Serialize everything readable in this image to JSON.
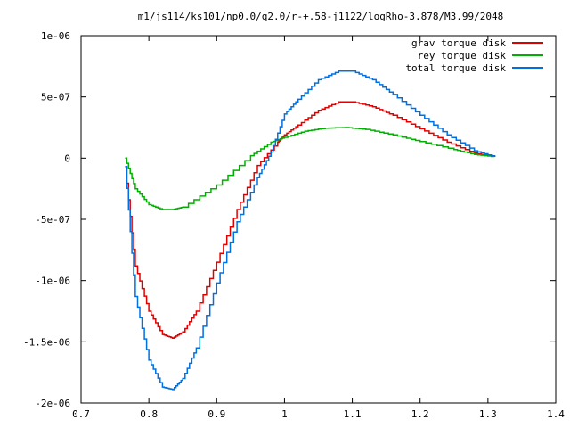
{
  "chart_data": {
    "type": "line",
    "title": "m1/js114/ks101/np0.0/q2.0/r-+.58-j1122/logRho-3.878/M3.99/2048",
    "xlabel": "",
    "ylabel": "",
    "xlim": [
      0.7,
      1.4
    ],
    "ylim": [
      -2e-06,
      1e-06
    ],
    "x_ticks": [
      0.7,
      0.8,
      0.9,
      1.0,
      1.1,
      1.2,
      1.3,
      1.4
    ],
    "x_tick_labels": [
      "0.7",
      "0.8",
      "0.9",
      "1",
      "1.1",
      "1.2",
      "1.3",
      "1.4"
    ],
    "y_ticks": [
      1e-06,
      5e-07,
      0,
      -5e-07,
      -1e-06,
      -1.5e-06,
      -2e-06
    ],
    "y_tick_labels": [
      "1e-06",
      "5e-07",
      "0",
      "-5e-07",
      "-1e-06",
      "-1.5e-06",
      "-2e-06"
    ],
    "grid": false,
    "legend_position": "top-right",
    "series": [
      {
        "name": "grav torque disk",
        "color": "#e00000",
        "x": [
          0.765,
          0.78,
          0.8,
          0.82,
          0.835,
          0.85,
          0.87,
          0.9,
          0.93,
          0.96,
          0.99,
          1.0,
          1.02,
          1.05,
          1.08,
          1.1,
          1.13,
          1.16,
          1.2,
          1.24,
          1.28,
          1.31
        ],
        "y": [
          -7e-08,
          -8.8e-07,
          -1.25e-06,
          -1.44e-06,
          -1.47e-06,
          -1.42e-06,
          -1.25e-06,
          -8.5e-07,
          -4.2e-07,
          -6e-08,
          1.3e-07,
          1.9e-07,
          2.7e-07,
          3.9e-07,
          4.6e-07,
          4.6e-07,
          4.2e-07,
          3.5e-07,
          2.4e-07,
          1.3e-07,
          4e-08,
          1e-08
        ]
      },
      {
        "name": "rey torque disk",
        "color": "#00b000",
        "x": [
          0.765,
          0.78,
          0.8,
          0.82,
          0.835,
          0.85,
          0.9,
          0.95,
          0.98,
          1.0,
          1.03,
          1.06,
          1.09,
          1.12,
          1.16,
          1.2,
          1.25,
          1.28,
          1.31
        ],
        "y": [
          0.0,
          -2.5e-07,
          -3.8e-07,
          -4.2e-07,
          -4.2e-07,
          -4e-07,
          -2.2e-07,
          2e-08,
          1.3e-07,
          1.7e-07,
          2.2e-07,
          2.45e-07,
          2.5e-07,
          2.35e-07,
          1.9e-07,
          1.35e-07,
          7e-08,
          3e-08,
          1e-08
        ]
      },
      {
        "name": "total torque disk",
        "color": "#0070e0",
        "x": [
          0.765,
          0.78,
          0.8,
          0.82,
          0.835,
          0.85,
          0.87,
          0.9,
          0.93,
          0.96,
          0.98,
          1.0,
          1.02,
          1.05,
          1.08,
          1.1,
          1.13,
          1.16,
          1.2,
          1.24,
          1.28,
          1.31
        ],
        "y": [
          -7e-08,
          -1.13e-06,
          -1.65e-06,
          -1.87e-06,
          -1.89e-06,
          -1.8e-06,
          -1.55e-06,
          -1.02e-06,
          -5.2e-07,
          -1.6e-07,
          5e-08,
          3.6e-07,
          4.8e-07,
          6.4e-07,
          7.1e-07,
          7.1e-07,
          6.4e-07,
          5.2e-07,
          3.5e-07,
          1.9e-07,
          6e-08,
          1e-08
        ]
      }
    ]
  }
}
